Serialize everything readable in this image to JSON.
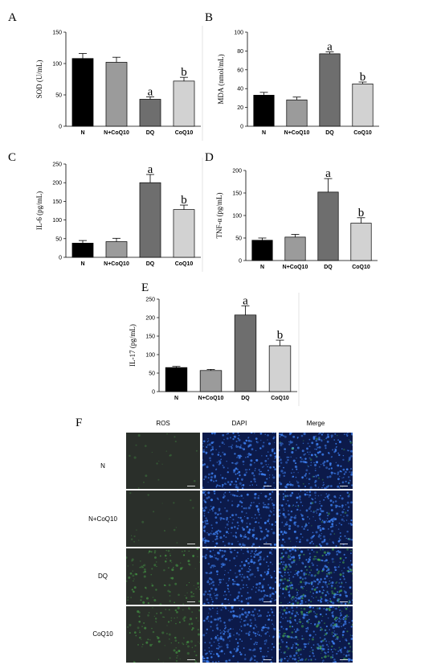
{
  "panels": [
    {
      "id": "A",
      "label": "A",
      "type": "bar",
      "ylabel": "SOD (U/mL)",
      "ylim": [
        0,
        150
      ],
      "yticks": [
        0,
        50,
        100,
        150
      ],
      "categories": [
        "N",
        "N+CoQ10",
        "DQ",
        "CoQ10"
      ],
      "values": [
        108,
        102,
        43,
        72
      ],
      "errors": [
        8,
        8,
        4,
        6
      ],
      "labels": [
        "",
        "",
        "a",
        "b"
      ],
      "colors": [
        "#000000",
        "#9b9b9b",
        "#6e6e6e",
        "#d2d2d2"
      ]
    },
    {
      "id": "B",
      "label": "B",
      "type": "bar",
      "ylabel": "MDA (nmol/mL)",
      "ylim": [
        0,
        100
      ],
      "yticks": [
        0,
        20,
        40,
        60,
        80,
        100
      ],
      "categories": [
        "N",
        "N+CoQ10",
        "DQ",
        "CoQ10"
      ],
      "values": [
        33,
        28,
        77,
        45
      ],
      "errors": [
        3,
        3,
        2,
        2
      ],
      "labels": [
        "",
        "",
        "a",
        "b"
      ],
      "colors": [
        "#000000",
        "#9b9b9b",
        "#6e6e6e",
        "#d2d2d2"
      ]
    },
    {
      "id": "C",
      "label": "C",
      "type": "bar",
      "ylabel": "IL-6 (pg/mL)",
      "ylim": [
        0,
        250
      ],
      "yticks": [
        0,
        50,
        100,
        150,
        200,
        250
      ],
      "categories": [
        "N",
        "N+CoQ10",
        "DQ",
        "CoQ10"
      ],
      "values": [
        38,
        42,
        200,
        128
      ],
      "errors": [
        7,
        9,
        22,
        12
      ],
      "labels": [
        "",
        "",
        "a",
        "b"
      ],
      "colors": [
        "#000000",
        "#9b9b9b",
        "#6e6e6e",
        "#d2d2d2"
      ]
    },
    {
      "id": "D",
      "label": "D",
      "type": "bar",
      "ylabel": "TNF-α (pg/mL)",
      "ylim": [
        0,
        200
      ],
      "yticks": [
        0,
        50,
        100,
        150,
        200
      ],
      "categories": [
        "N",
        "N+CoQ10",
        "DQ",
        "CoQ10"
      ],
      "values": [
        45,
        52,
        152,
        83
      ],
      "errors": [
        5,
        6,
        30,
        12
      ],
      "labels": [
        "",
        "",
        "a",
        "b"
      ],
      "colors": [
        "#000000",
        "#9b9b9b",
        "#6e6e6e",
        "#d2d2d2"
      ]
    },
    {
      "id": "E",
      "label": "E",
      "type": "bar",
      "ylabel": "IL-17 (pg/mL)",
      "ylim": [
        0,
        250
      ],
      "yticks": [
        0,
        50,
        100,
        150,
        200,
        250
      ],
      "categories": [
        "N",
        "N+CoQ10",
        "DQ",
        "CoQ10"
      ],
      "values": [
        65,
        57,
        207,
        124
      ],
      "errors": [
        3,
        3,
        25,
        15
      ],
      "labels": [
        "",
        "",
        "a",
        "b"
      ],
      "colors": [
        "#000000",
        "#9b9b9b",
        "#6e6e6e",
        "#d2d2d2"
      ]
    }
  ],
  "chart_data": [
    {
      "type": "bar",
      "ylabel": "SOD (U/mL)",
      "categories": [
        "N",
        "N+CoQ10",
        "DQ",
        "CoQ10"
      ],
      "values": [
        108,
        102,
        43,
        72
      ],
      "errors": [
        8,
        8,
        4,
        6
      ],
      "ylim": [
        0,
        150
      ],
      "annotations": [
        "",
        "",
        "a",
        "b"
      ]
    },
    {
      "type": "bar",
      "ylabel": "MDA (nmol/mL)",
      "categories": [
        "N",
        "N+CoQ10",
        "DQ",
        "CoQ10"
      ],
      "values": [
        33,
        28,
        77,
        45
      ],
      "errors": [
        3,
        3,
        2,
        2
      ],
      "ylim": [
        0,
        100
      ],
      "annotations": [
        "",
        "",
        "a",
        "b"
      ]
    },
    {
      "type": "bar",
      "ylabel": "IL-6 (pg/mL)",
      "categories": [
        "N",
        "N+CoQ10",
        "DQ",
        "CoQ10"
      ],
      "values": [
        38,
        42,
        200,
        128
      ],
      "errors": [
        7,
        9,
        22,
        12
      ],
      "ylim": [
        0,
        250
      ],
      "annotations": [
        "",
        "",
        "a",
        "b"
      ]
    },
    {
      "type": "bar",
      "ylabel": "TNF-α (pg/mL)",
      "categories": [
        "N",
        "N+CoQ10",
        "DQ",
        "CoQ10"
      ],
      "values": [
        45,
        52,
        152,
        83
      ],
      "errors": [
        5,
        6,
        30,
        12
      ],
      "ylim": [
        0,
        200
      ],
      "annotations": [
        "",
        "",
        "a",
        "b"
      ]
    },
    {
      "type": "bar",
      "ylabel": "IL-17 (pg/mL)",
      "categories": [
        "N",
        "N+CoQ10",
        "DQ",
        "CoQ10"
      ],
      "values": [
        65,
        57,
        207,
        124
      ],
      "errors": [
        3,
        3,
        25,
        15
      ],
      "ylim": [
        0,
        250
      ],
      "annotations": [
        "",
        "",
        "a",
        "b"
      ]
    }
  ],
  "micrograph": {
    "label": "F",
    "columns": [
      "ROS",
      "DAPI",
      "Merge"
    ],
    "rows": [
      "N",
      "N+CoQ10",
      "DQ",
      "CoQ10"
    ],
    "colors": {
      "ros_bg": "#2a2f2a",
      "ros_signal": "#4fc04f",
      "dapi_bg": "#0c1a4a",
      "dapi_signal": "#3d7ff0"
    },
    "ros_intensity": [
      0.05,
      0.04,
      0.6,
      0.55
    ]
  }
}
